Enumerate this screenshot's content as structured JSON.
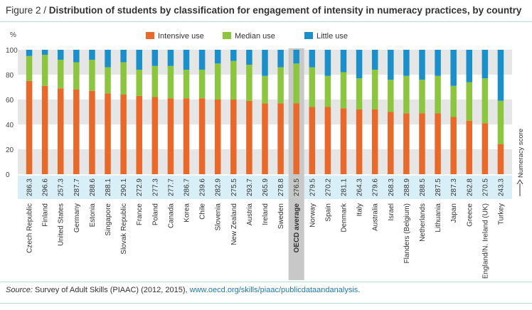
{
  "title": {
    "prefix": "Figure 2 / ",
    "text": "Distribution of students by classification for engagement of intensity in numeracy practices, by country"
  },
  "source": {
    "label": "Source:",
    "text": " Survey of Adult Skills (PIAAC) (2012, 2015), ",
    "link": "www.oecd.org/skills/piaac/publicdataandanalysis",
    "end": "."
  },
  "colors": {
    "intensive": "#e8692a",
    "median": "#8cc63f",
    "little": "#1a8fc9",
    "band": "#e6e6e6",
    "score_band": "#d9eff7",
    "oecd_highlight": "#c8c8c8"
  },
  "chart_data": {
    "type": "bar",
    "stacked": true,
    "ylabel": "%",
    "ylim": [
      0,
      100
    ],
    "yticks": [
      0,
      20,
      40,
      60,
      80,
      100
    ],
    "score_label": "Numeracy score",
    "highlight_category": "OECD average",
    "legend": [
      "Intensive use",
      "Median use",
      "Little use"
    ],
    "categories": [
      "Czech Republic",
      "Finland",
      "United States",
      "Germany",
      "Estonia",
      "Singapore",
      "Slovak Republic",
      "France",
      "Poland",
      "Canada",
      "Korea",
      "Chile",
      "Slovenia",
      "New Zealand",
      "Austria",
      "Ireland",
      "Sweden",
      "OECD average",
      "Norway",
      "Spain",
      "Denmark",
      "Italy",
      "Australia",
      "Israel",
      "Flanders (Belgium)",
      "Netherlands",
      "Lithuania",
      "Japan",
      "Greece",
      "England/N. Ireland (UK)",
      "Turkey"
    ],
    "scores": [
      "286.3",
      "296.6",
      "257.3",
      "287.7",
      "288.6",
      "288.1",
      "290.1",
      "272.9",
      "277.3",
      "277.7",
      "286.7",
      "239.6",
      "282.9",
      "275.5",
      "293.7",
      "265.9",
      "278.8",
      "276.5",
      "279.5",
      "270.2",
      "281.1",
      "264.3",
      "279.6",
      "268.3",
      "288.9",
      "288.5",
      "287.5",
      "287.3",
      "262.8",
      "270.5",
      "243.3"
    ],
    "series": [
      {
        "name": "Intensive use",
        "values": [
          75,
          71,
          69,
          68,
          67,
          65,
          64,
          63,
          62,
          61,
          61,
          61,
          60,
          60,
          59,
          57,
          57,
          57,
          54,
          54,
          53,
          52,
          52,
          50,
          49,
          49,
          49,
          46,
          43,
          41,
          24
        ]
      },
      {
        "name": "Median use",
        "values": [
          20,
          25,
          23,
          22,
          25,
          21,
          26,
          21,
          25,
          26,
          23,
          23,
          29,
          31,
          29,
          22,
          29,
          32,
          32,
          25,
          29,
          25,
          32,
          26,
          30,
          27,
          30,
          25,
          31,
          36,
          35
        ]
      },
      {
        "name": "Little use",
        "values": [
          5,
          4,
          8,
          10,
          8,
          14,
          10,
          16,
          13,
          13,
          16,
          16,
          11,
          9,
          12,
          21,
          14,
          11,
          14,
          21,
          18,
          23,
          16,
          24,
          21,
          24,
          21,
          29,
          26,
          23,
          41
        ]
      }
    ]
  }
}
